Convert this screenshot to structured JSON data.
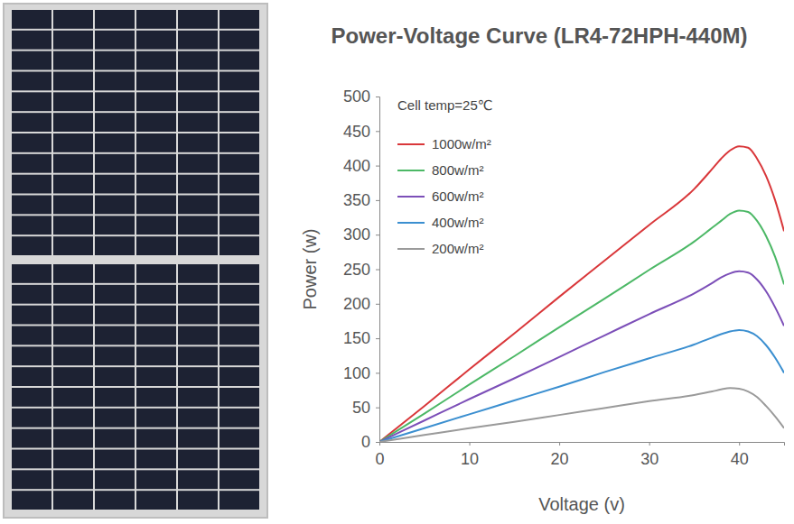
{
  "chart_data": {
    "type": "line",
    "title": "Power-Voltage Curve (LR4-72HPH-440M)",
    "annotation": "Cell temp=25℃",
    "x_label": "Voltage (v)",
    "y_label": "Power (w)",
    "x": [
      0,
      5,
      10,
      15,
      20,
      25,
      30,
      35,
      37,
      38,
      39,
      40,
      41,
      42,
      43,
      44,
      45
    ],
    "series": [
      {
        "name": "1000w/m²",
        "color": "#d9373a",
        "values": [
          0,
          52,
          105,
          157,
          210,
          262,
          314,
          366,
          395,
          410,
          422,
          428,
          426,
          410,
          385,
          350,
          305
        ]
      },
      {
        "name": "800w/m²",
        "color": "#4cb866",
        "values": [
          0,
          41,
          83,
          124,
          166,
          207,
          249,
          290,
          310,
          320,
          330,
          335,
          333,
          320,
          298,
          268,
          228
        ]
      },
      {
        "name": "600w/m²",
        "color": "#7c4fb8",
        "values": [
          0,
          31,
          62,
          92,
          123,
          154,
          185,
          215,
          230,
          238,
          244,
          247,
          245,
          235,
          218,
          195,
          168
        ]
      },
      {
        "name": "400w/m²",
        "color": "#3b8fd0",
        "values": [
          0,
          20,
          40,
          60,
          80,
          101,
          121,
          141,
          151,
          156,
          160,
          162,
          160,
          153,
          140,
          122,
          100
        ]
      },
      {
        "name": "200w/m²",
        "color": "#9a9a9a",
        "values": [
          0,
          10,
          20,
          29,
          39,
          49,
          59,
          68,
          73,
          76,
          78,
          77,
          73,
          65,
          52,
          37,
          20
        ]
      }
    ],
    "xlim": [
      0,
      45
    ],
    "xticks": [
      0,
      10,
      20,
      30,
      40
    ],
    "ylim": [
      0,
      500
    ],
    "yticks": [
      0,
      50,
      100,
      150,
      200,
      250,
      300,
      350,
      400,
      450,
      500
    ],
    "grid": false,
    "legend": "upper left"
  }
}
